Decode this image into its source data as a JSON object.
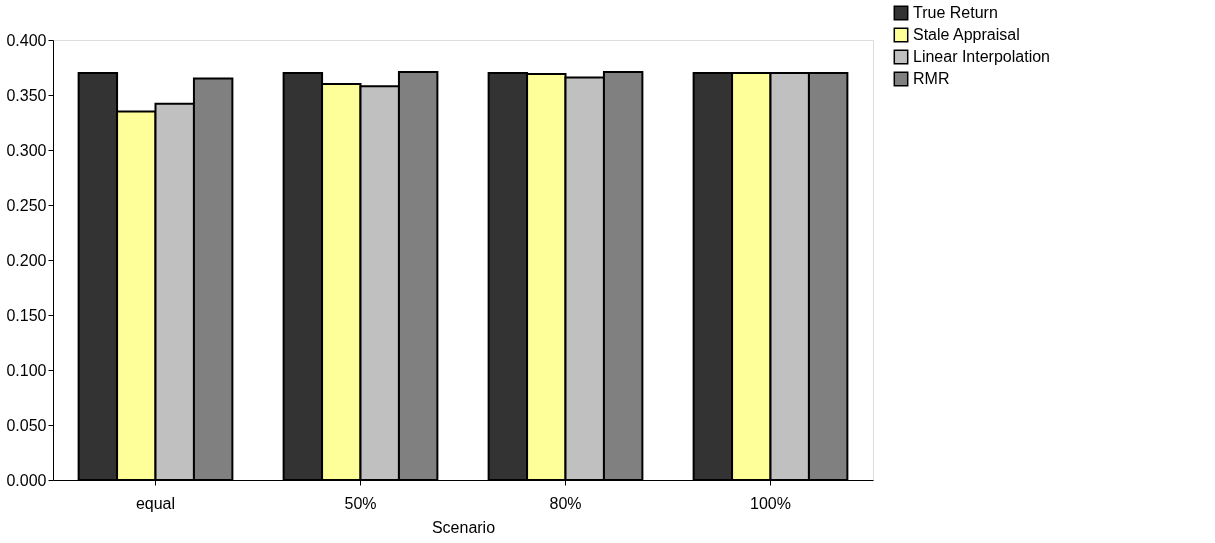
{
  "chart_data": {
    "type": "bar",
    "xlabel": "Scenario",
    "categories": [
      "equal",
      "50%",
      "80%",
      "100%"
    ],
    "series": [
      {
        "name": "True Return",
        "color": "#333333",
        "values": [
          0.37,
          0.37,
          0.37,
          0.37
        ]
      },
      {
        "name": "Stale Appraisal",
        "color": "#ffff99",
        "values": [
          0.335,
          0.36,
          0.369,
          0.37
        ]
      },
      {
        "name": "Linear Interpolation",
        "color": "#c0c0c0",
        "values": [
          0.342,
          0.358,
          0.366,
          0.37
        ]
      },
      {
        "name": "RMR",
        "color": "#808080",
        "values": [
          0.365,
          0.371,
          0.371,
          0.37
        ]
      }
    ],
    "ylim": [
      0,
      0.4
    ],
    "yticks": [
      {
        "value": 0,
        "label": "0.000"
      },
      {
        "value": 0.05,
        "label": "0.050"
      },
      {
        "value": 0.1,
        "label": "0.100"
      },
      {
        "value": 0.15,
        "label": "0.150"
      },
      {
        "value": 0.2,
        "label": "0.200"
      },
      {
        "value": 0.25,
        "label": "0.250"
      },
      {
        "value": 0.3,
        "label": "0.300"
      },
      {
        "value": 0.35,
        "label": "0.350"
      },
      {
        "value": 0.4,
        "label": "0.400"
      }
    ],
    "grid": false,
    "legend": "top right"
  }
}
